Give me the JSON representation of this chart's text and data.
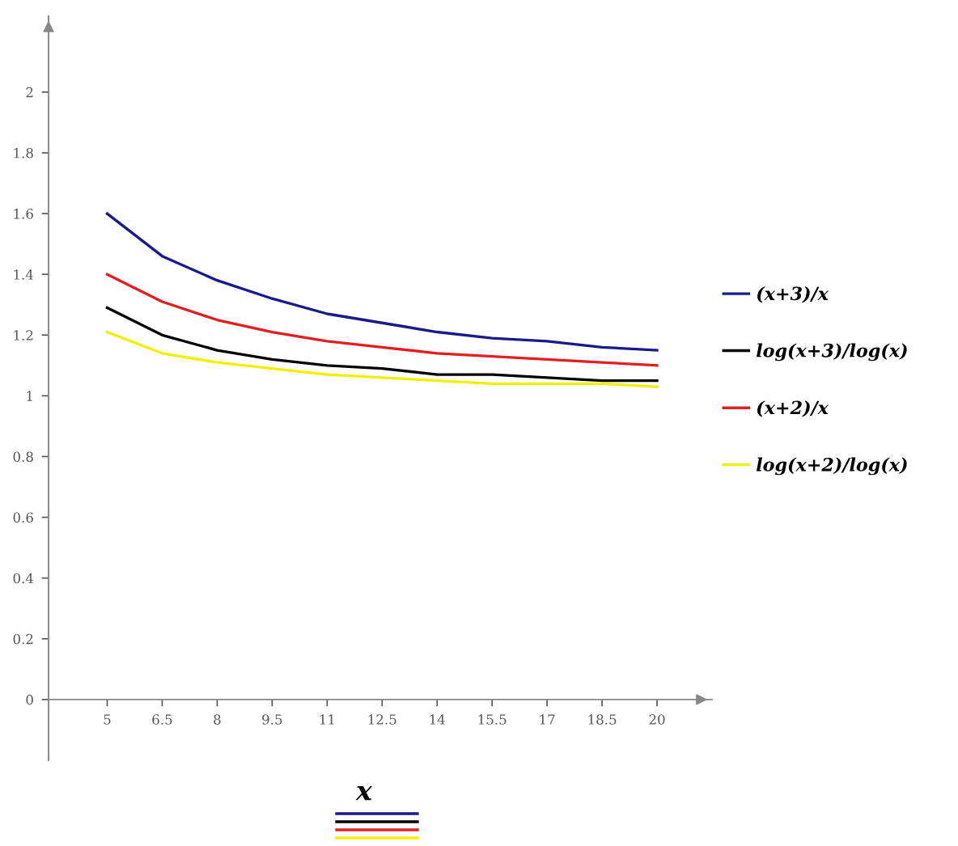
{
  "chart_data": {
    "type": "line",
    "xlabel": "x",
    "x": [
      5,
      6.5,
      8,
      9.5,
      11,
      12.5,
      14,
      15.5,
      17,
      18.5,
      20
    ],
    "series": [
      {
        "name": "(x+3)/x",
        "color": "#1a1a8c",
        "values": [
          1.6,
          1.46,
          1.38,
          1.32,
          1.27,
          1.24,
          1.21,
          1.19,
          1.18,
          1.16,
          1.15
        ]
      },
      {
        "name": "log(x+3)/log(x)",
        "color": "#000000",
        "values": [
          1.29,
          1.2,
          1.15,
          1.12,
          1.1,
          1.09,
          1.07,
          1.07,
          1.06,
          1.05,
          1.05
        ]
      },
      {
        "name": "(x+2)/x",
        "color": "#e02020",
        "values": [
          1.4,
          1.31,
          1.25,
          1.21,
          1.18,
          1.16,
          1.14,
          1.13,
          1.12,
          1.11,
          1.1
        ]
      },
      {
        "name": "log(x+2)/log(x)",
        "color": "#f0f000",
        "values": [
          1.21,
          1.14,
          1.11,
          1.09,
          1.07,
          1.06,
          1.05,
          1.04,
          1.04,
          1.04,
          1.03
        ]
      }
    ],
    "xlim": [
      3.4,
      21.5
    ],
    "ylim": [
      -0.2,
      2.25
    ],
    "xticks": [
      5,
      6.5,
      8,
      9.5,
      11,
      12.5,
      14,
      15.5,
      17,
      18.5,
      20
    ],
    "yticks": [
      0,
      0.2,
      0.4,
      0.6,
      0.8,
      1,
      1.2,
      1.4,
      1.6,
      1.8,
      2
    ],
    "grid": false,
    "legend": "right",
    "marker": "none",
    "line_style": "solid"
  }
}
